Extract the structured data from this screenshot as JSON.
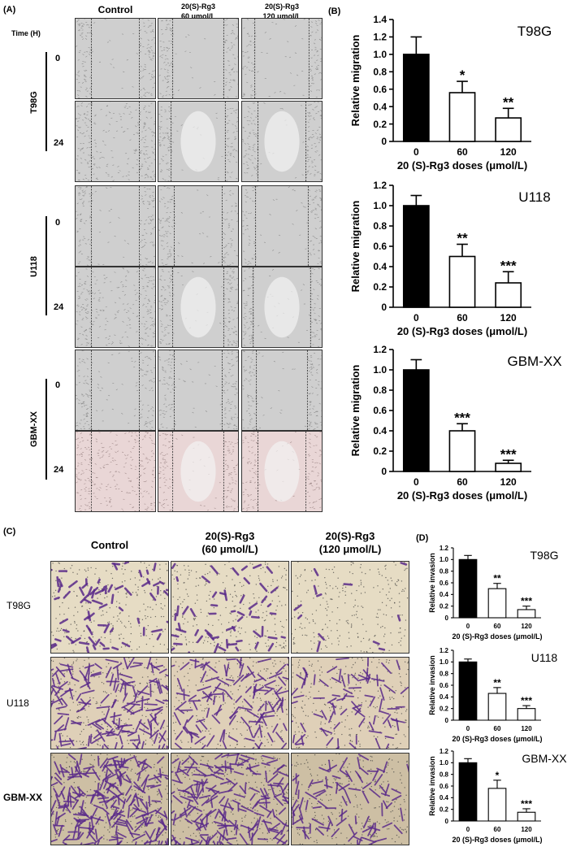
{
  "panelA": {
    "label": "(A)",
    "time_label": "Time (H)",
    "columns": [
      "Control",
      "20(S)-Rg3",
      "20(S)-Rg3"
    ],
    "column_doses": [
      "",
      "60 μmol/L",
      "120 μmol/L"
    ],
    "cell_lines": [
      {
        "name": "T98G",
        "times": [
          "0",
          "24"
        ]
      },
      {
        "name": "U118",
        "times": [
          "0",
          "24"
        ]
      },
      {
        "name": "GBM-XX",
        "times": [
          "0",
          "24"
        ]
      }
    ]
  },
  "panelB": {
    "label": "(B)"
  },
  "panelC": {
    "label": "(C)",
    "columns": [
      "Control",
      "20(S)-Rg3",
      "20(S)-Rg3"
    ],
    "column_doses": [
      "",
      "(60 μmol/L)",
      "(120 μmol/L)"
    ],
    "rows": [
      "T98G",
      "U118",
      "GBM-XX"
    ]
  },
  "panelD": {
    "label": "(D)"
  },
  "colors": {
    "bar_control": "#000000",
    "bar_treated": "#ffffff",
    "purple_stain": "#5a2a8a"
  },
  "chart_data": [
    {
      "id": "B1",
      "type": "bar",
      "title": "T98G",
      "categories": [
        "0",
        "60",
        "120"
      ],
      "values": [
        1.0,
        0.56,
        0.27
      ],
      "errors": [
        0.2,
        0.13,
        0.11
      ],
      "significance": [
        "",
        "*",
        "**"
      ],
      "xlabel": "20 (S)-Rg3 doses (μmol/L)",
      "ylabel": "Relative migration",
      "ylim": [
        0,
        1.4
      ],
      "yticks": [
        "0",
        "0.2",
        "0.4",
        "0.6",
        "0.8",
        "1.0",
        "1.2",
        "1.4"
      ]
    },
    {
      "id": "B2",
      "type": "bar",
      "title": "U118",
      "categories": [
        "0",
        "60",
        "120"
      ],
      "values": [
        1.0,
        0.5,
        0.24
      ],
      "errors": [
        0.1,
        0.12,
        0.11
      ],
      "significance": [
        "",
        "**",
        "***"
      ],
      "xlabel": "20 (S)-Rg3 doses (μmol/L)",
      "ylabel": "Relative migration",
      "ylim": [
        0,
        1.2
      ],
      "yticks": [
        "0",
        "0.2",
        "0.4",
        "0.6",
        "0.8",
        "1.0",
        "1.2"
      ]
    },
    {
      "id": "B3",
      "type": "bar",
      "title": "GBM-XX",
      "categories": [
        "0",
        "60",
        "120"
      ],
      "values": [
        1.0,
        0.4,
        0.08
      ],
      "errors": [
        0.1,
        0.07,
        0.03
      ],
      "significance": [
        "",
        "***",
        "***"
      ],
      "xlabel": "20 (S)-Rg3 doses (μmol/L)",
      "ylabel": "Relative migration",
      "ylim": [
        0,
        1.2
      ],
      "yticks": [
        "0",
        "0.2",
        "0.4",
        "0.6",
        "0.8",
        "1.0",
        "1.2"
      ]
    },
    {
      "id": "D1",
      "type": "bar",
      "title": "T98G",
      "categories": [
        "0",
        "60",
        "120"
      ],
      "values": [
        1.0,
        0.5,
        0.14
      ],
      "errors": [
        0.07,
        0.09,
        0.06
      ],
      "significance": [
        "",
        "**",
        "***"
      ],
      "xlabel": "20 (S)-Rg3 doses (μmol/L)",
      "ylabel": "Relative invasion",
      "ylim": [
        0,
        1.2
      ],
      "yticks": [
        "0",
        "0.2",
        "0.4",
        "0.6",
        "0.8",
        "1.0",
        "1.2"
      ]
    },
    {
      "id": "D2",
      "type": "bar",
      "title": "U118",
      "categories": [
        "0",
        "60",
        "120"
      ],
      "values": [
        1.0,
        0.46,
        0.2
      ],
      "errors": [
        0.05,
        0.1,
        0.05
      ],
      "significance": [
        "",
        "**",
        "***"
      ],
      "xlabel": "20 (S)-Rg3 doses (μmol/L)",
      "ylabel": "Relative invasion",
      "ylim": [
        0,
        1.2
      ],
      "yticks": [
        "0",
        "0.2",
        "0.4",
        "0.6",
        "0.8",
        "1.0",
        "1.2"
      ]
    },
    {
      "id": "D3",
      "type": "bar",
      "title": "GBM-XX",
      "categories": [
        "0",
        "60",
        "120"
      ],
      "values": [
        1.0,
        0.56,
        0.15
      ],
      "errors": [
        0.07,
        0.14,
        0.06
      ],
      "significance": [
        "",
        "*",
        "***"
      ],
      "xlabel": "20 (S)-Rg3 doses (μmol/L)",
      "ylabel": "Relative invasion",
      "ylim": [
        0,
        1.2
      ],
      "yticks": [
        "0",
        "0.2",
        "0.4",
        "0.6",
        "0.8",
        "1.0",
        "1.2"
      ]
    }
  ]
}
